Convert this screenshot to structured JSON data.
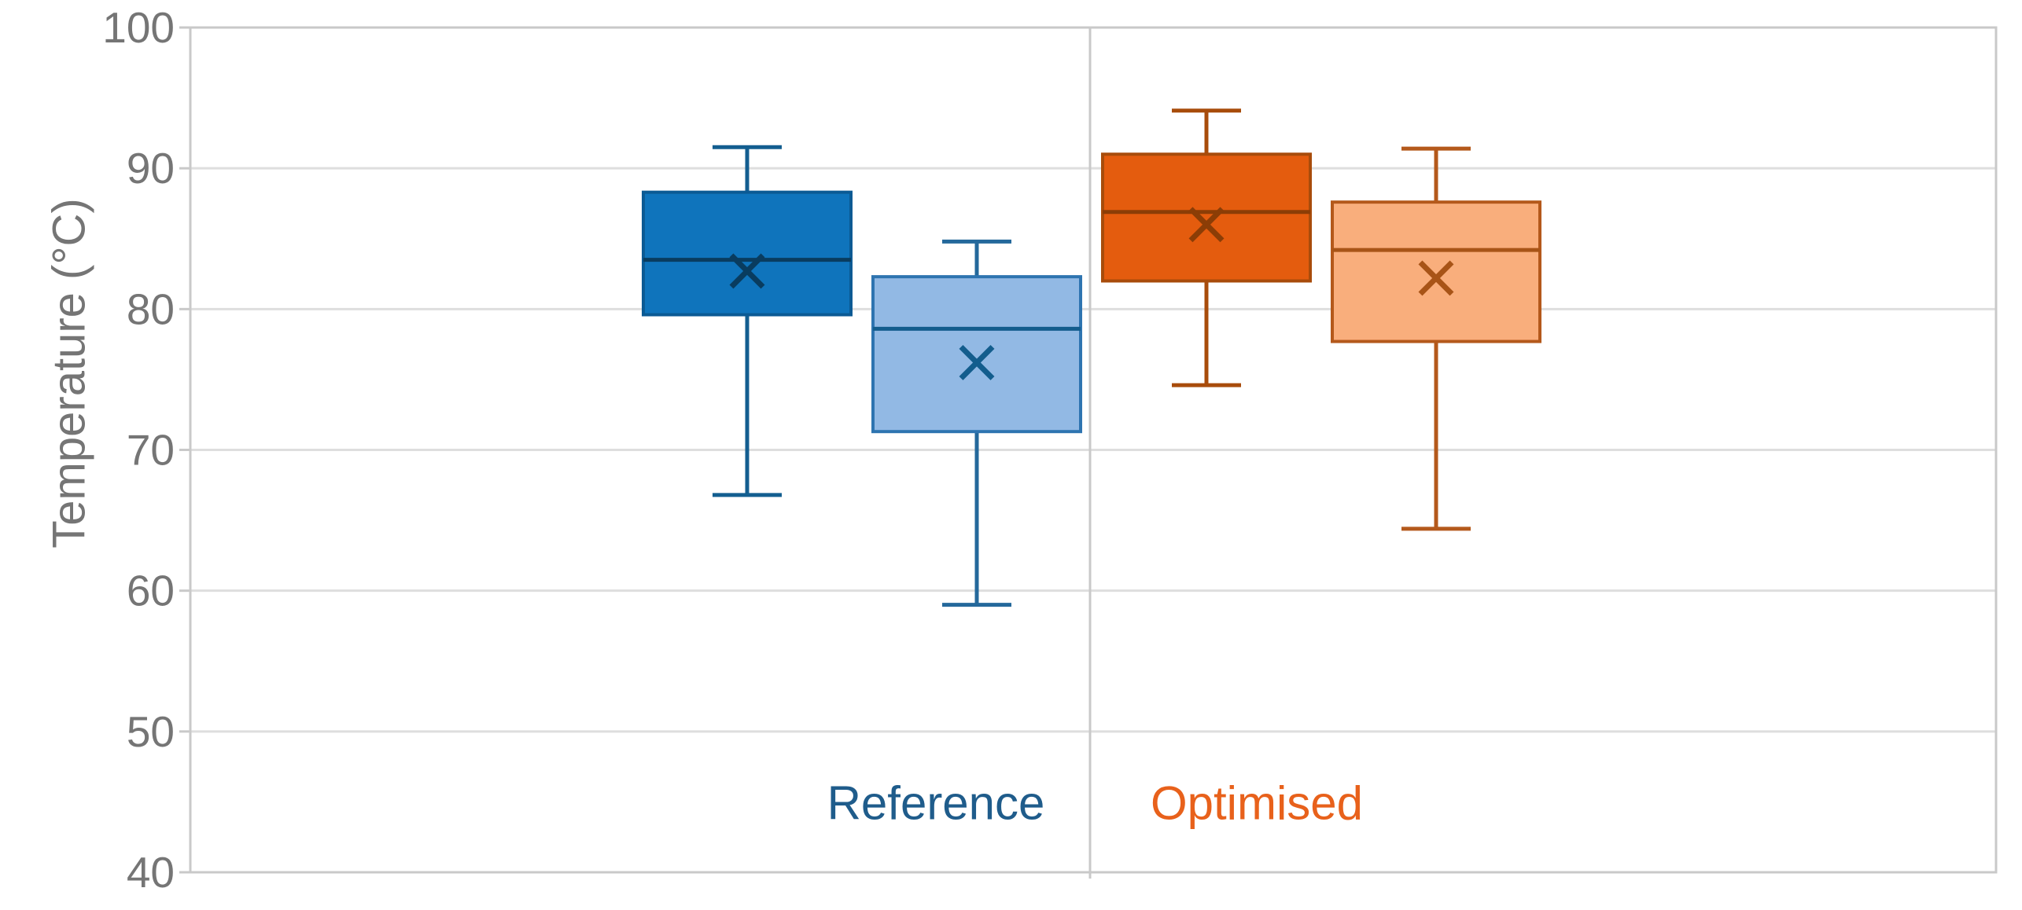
{
  "chart_data": {
    "type": "boxplot",
    "title": "",
    "xlabel": "",
    "ylabel": "Temperature (°C)",
    "ylim": [
      40,
      100
    ],
    "yticks": [
      40,
      50,
      60,
      70,
      80,
      90,
      100
    ],
    "grid": "horizontal",
    "legend_position": "none",
    "colors": {
      "background": "#FFFFFF",
      "gridline": "#DEDEDE",
      "axis_border": "#C9C9C9",
      "tick_label": "#757575",
      "axis_title": "#757575"
    },
    "groups": [
      {
        "label": "Reference",
        "label_color": "#1F5C8B"
      },
      {
        "label": "Optimised",
        "label_color": "#E8611B"
      }
    ],
    "series": [
      {
        "name": "reference-dark-blue",
        "group": 0,
        "whisker_low": 66.8,
        "q1": 79.6,
        "median": 83.5,
        "mean": 82.7,
        "q3": 88.3,
        "whisker_high": 91.5,
        "fill": "#0F74BC",
        "stroke": "#0B5A94",
        "median_color": "#093C5F",
        "whisker_color": "#135E90",
        "mean_marker": "x"
      },
      {
        "name": "reference-light-blue",
        "group": 0,
        "whisker_low": 59.0,
        "q1": 71.3,
        "median": 78.6,
        "mean": 76.2,
        "q3": 82.3,
        "whisker_high": 84.8,
        "fill": "#92B9E4",
        "stroke": "#2E74B0",
        "median_color": "#135D8D",
        "whisker_color": "#24689B",
        "mean_marker": "x"
      },
      {
        "name": "optimised-dark-orange",
        "group": 1,
        "whisker_low": 74.6,
        "q1": 82.0,
        "median": 86.9,
        "mean": 86.0,
        "q3": 91.0,
        "whisker_high": 94.1,
        "fill": "#E45C0E",
        "stroke": "#A84C0B",
        "median_color": "#8B3D06",
        "whisker_color": "#A84C0B",
        "mean_marker": "x"
      },
      {
        "name": "optimised-light-orange",
        "group": 1,
        "whisker_low": 64.4,
        "q1": 77.7,
        "median": 84.2,
        "mean": 82.2,
        "q3": 87.6,
        "whisker_high": 91.4,
        "fill": "#F9AE7C",
        "stroke": "#B4591B",
        "median_color": "#A85417",
        "whisker_color": "#B4591B",
        "mean_marker": "x"
      }
    ]
  }
}
